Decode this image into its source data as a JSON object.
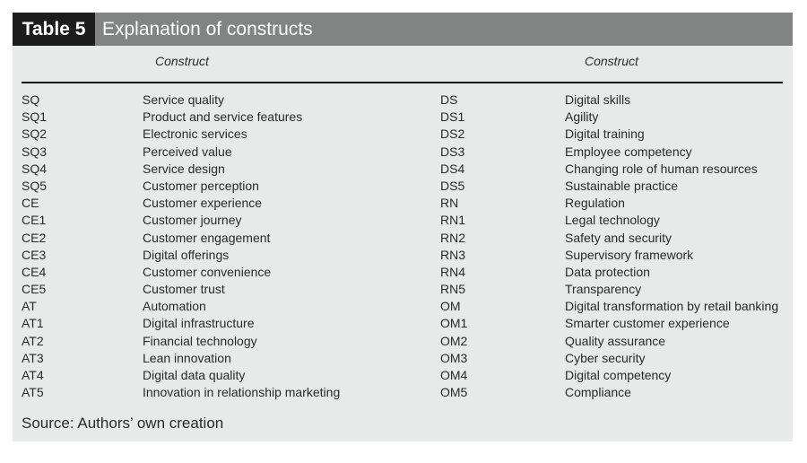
{
  "table": {
    "label": "Table 5",
    "title": "Explanation of constructs",
    "col_header_left": "Construct",
    "col_header_right": "Construct",
    "rows": [
      [
        "SQ",
        "Service quality",
        "DS",
        "Digital skills"
      ],
      [
        "SQ1",
        "Product and service features",
        "DS1",
        "Agility"
      ],
      [
        "SQ2",
        "Electronic services",
        "DS2",
        "Digital training"
      ],
      [
        "SQ3",
        "Perceived value",
        "DS3",
        "Employee competency"
      ],
      [
        "SQ4",
        "Service design",
        "DS4",
        "Changing role of human resources"
      ],
      [
        "SQ5",
        "Customer perception",
        "DS5",
        "Sustainable practice"
      ],
      [
        "CE",
        "Customer experience",
        "RN",
        "Regulation"
      ],
      [
        "CE1",
        "Customer journey",
        "RN1",
        "Legal technology"
      ],
      [
        "CE2",
        "Customer engagement",
        "RN2",
        "Safety and security"
      ],
      [
        "CE3",
        "Digital offerings",
        "RN3",
        "Supervisory framework"
      ],
      [
        "CE4",
        "Customer convenience",
        "RN4",
        "Data protection"
      ],
      [
        "CE5",
        "Customer trust",
        "RN5",
        "Transparency"
      ],
      [
        "AT",
        "Automation",
        "OM",
        "Digital transformation by retail banking"
      ],
      [
        "AT1",
        "Digital infrastructure",
        "OM1",
        "Smarter customer experience"
      ],
      [
        "AT2",
        "Financial technology",
        "OM2",
        "Quality assurance"
      ],
      [
        "AT3",
        "Lean innovation",
        "OM3",
        "Cyber security"
      ],
      [
        "AT4",
        "Digital data quality",
        "OM4",
        "Digital competency"
      ],
      [
        "AT5",
        "Innovation in relationship marketing",
        "OM5",
        "Compliance"
      ]
    ],
    "source_label": "Source:",
    "source_text": "Authors’ own creation"
  },
  "colors": {
    "title_bar": "#828383",
    "label_box": "#1c1c1c",
    "panel_bg": "#e8e9e9",
    "text": "#2a2a2a"
  }
}
